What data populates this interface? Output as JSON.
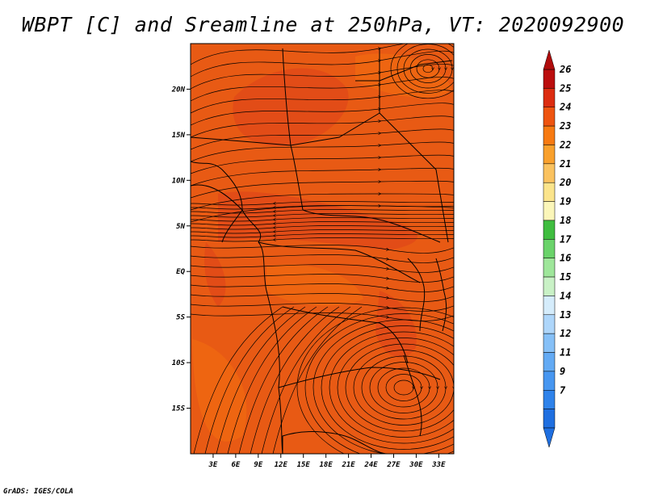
{
  "title": "WBPT [C] and Sreamline at 250hPa, VT: 2020092900",
  "credit": "GrADS: IGES/COLA",
  "map": {
    "lon_range": [
      0,
      35
    ],
    "lat_range": [
      -20,
      25
    ],
    "lon_ticks": [
      {
        "value": 3,
        "label": "3E"
      },
      {
        "value": 6,
        "label": "6E"
      },
      {
        "value": 9,
        "label": "9E"
      },
      {
        "value": 12,
        "label": "12E"
      },
      {
        "value": 15,
        "label": "15E"
      },
      {
        "value": 18,
        "label": "18E"
      },
      {
        "value": 21,
        "label": "21E"
      },
      {
        "value": 24,
        "label": "24E"
      },
      {
        "value": 27,
        "label": "27E"
      },
      {
        "value": 30,
        "label": "30E"
      },
      {
        "value": 33,
        "label": "33E"
      }
    ],
    "lat_ticks": [
      {
        "value": 20,
        "label": "20N"
      },
      {
        "value": 15,
        "label": "15N"
      },
      {
        "value": 10,
        "label": "10N"
      },
      {
        "value": 5,
        "label": "5N"
      },
      {
        "value": 0,
        "label": "EQ"
      },
      {
        "value": -5,
        "label": "5S"
      },
      {
        "value": -10,
        "label": "10S"
      },
      {
        "value": -15,
        "label": "15S"
      }
    ],
    "background_color": "#e85a14",
    "field_color_stops": [
      "#f06a10",
      "#e85a14",
      "#e04818",
      "#f08010"
    ],
    "line_color": "#000000"
  },
  "colorbar": {
    "levels": [
      "7",
      "9",
      "11",
      "12",
      "13",
      "14",
      "15",
      "16",
      "17",
      "18",
      "19",
      "20",
      "21",
      "22",
      "23",
      "24",
      "25",
      "26"
    ],
    "colors": [
      "#1f6fe0",
      "#2e82ea",
      "#4796f0",
      "#63aaf4",
      "#86c0f7",
      "#aed6fa",
      "#d5ecfb",
      "#c9f1c6",
      "#9ee69a",
      "#6ad36a",
      "#3fbd3f",
      "#fbf6b9",
      "#fbe48b",
      "#fac25f",
      "#f9a02c",
      "#f77a12",
      "#ee5410",
      "#dc2c10",
      "#bb0e0e"
    ],
    "under_color": "#1f6fe0",
    "over_color": "#b00c0c"
  }
}
